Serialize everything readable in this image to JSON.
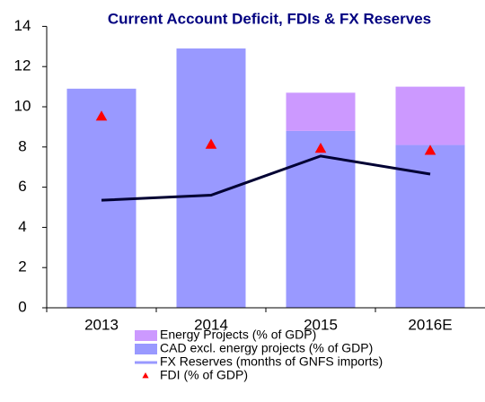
{
  "chart_data": {
    "type": "bar",
    "title": "Current Account Deficit, FDIs & FX Reserves",
    "categories": [
      "2013",
      "2014",
      "2015",
      "2016E"
    ],
    "series": [
      {
        "name": "Energy Projects (% of GDP)",
        "type": "bar",
        "color": "#cc99ff",
        "values": [
          null,
          null,
          1.9,
          2.9
        ]
      },
      {
        "name": "CAD excl. energy projects (% of GDP)",
        "type": "bar",
        "color": "#9999ff",
        "values": [
          10.9,
          12.9,
          8.8,
          8.1
        ]
      },
      {
        "name": "FX Reserves (months of GNFS imports)",
        "type": "line",
        "color": "#000033",
        "values": [
          5.35,
          5.6,
          7.55,
          6.65
        ]
      },
      {
        "name": "FDI (% of GDP)",
        "type": "scatter",
        "color": "#ff0000",
        "values": [
          9.5,
          8.1,
          7.9,
          7.8
        ]
      }
    ],
    "ylim": [
      0,
      14
    ],
    "yticks": [
      0,
      2,
      4,
      6,
      8,
      10,
      12,
      14
    ],
    "grid": false
  }
}
